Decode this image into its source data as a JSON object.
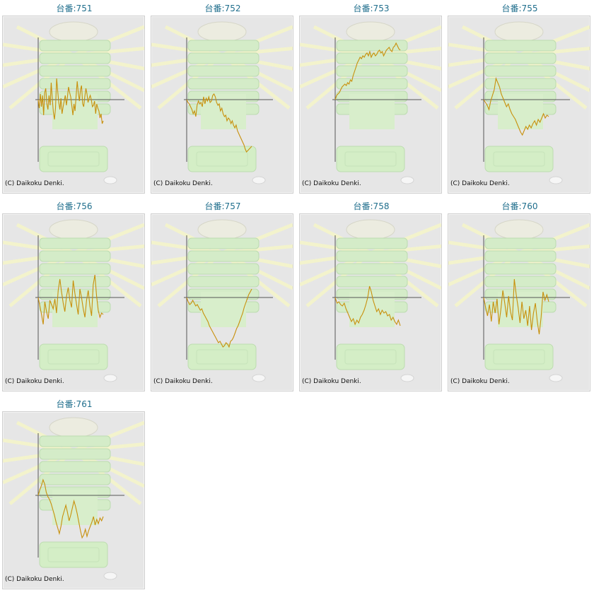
{
  "chart_data": [
    {
      "type": "line",
      "title": "台番:751",
      "copyright": "(C) Daikoku Denki.",
      "values": [
        0,
        -12,
        8,
        -10,
        6,
        -22,
        10,
        16,
        -6,
        -14,
        6,
        -8,
        24,
        2,
        -18,
        -28,
        -12,
        30,
        12,
        -4,
        -14,
        2,
        -20,
        -10,
        -2,
        6,
        -8,
        4,
        18,
        10,
        4,
        -8,
        -22,
        -6,
        -16,
        6,
        26,
        10,
        -2,
        14,
        20,
        -6,
        -10,
        4,
        16,
        8,
        -4,
        2,
        6,
        0,
        -10,
        -8,
        -2,
        -20,
        -6,
        -12,
        -16,
        -26,
        -20,
        -34,
        -30
      ]
    },
    {
      "type": "line",
      "title": "台番:752",
      "copyright": "(C) Daikoku Denki.",
      "values": [
        0,
        -4,
        -6,
        -10,
        -14,
        -20,
        -16,
        -24,
        -8,
        -2,
        -6,
        -4,
        -10,
        4,
        -6,
        2,
        -2,
        4,
        -4,
        -2,
        6,
        8,
        4,
        -4,
        -8,
        -6,
        -16,
        -12,
        -20,
        -24,
        -22,
        -30,
        -26,
        -28,
        -34,
        -30,
        -36,
        -40,
        -36,
        -44,
        -48,
        -52,
        -56,
        -60,
        -64,
        -70,
        -74,
        -72,
        -70,
        -68,
        -66
      ]
    },
    {
      "type": "line",
      "title": "台番:753",
      "copyright": "(C) Daikoku Denki.",
      "values": [
        0,
        6,
        8,
        10,
        14,
        18,
        20,
        22,
        20,
        24,
        22,
        28,
        26,
        34,
        40,
        46,
        52,
        56,
        60,
        58,
        62,
        60,
        64,
        66,
        62,
        68,
        60,
        64,
        66,
        62,
        64,
        68,
        70,
        66,
        68,
        62,
        66,
        70,
        72,
        74,
        70,
        68,
        74,
        76,
        80,
        76,
        72,
        70
      ]
    },
    {
      "type": "line",
      "title": "台番:755",
      "copyright": "(C) Daikoku Denki.",
      "values": [
        0,
        -4,
        -8,
        -14,
        -2,
        6,
        14,
        30,
        24,
        18,
        8,
        2,
        -4,
        -10,
        -6,
        -14,
        -20,
        -24,
        -28,
        -34,
        -40,
        -46,
        -50,
        -44,
        -38,
        -42,
        -36,
        -40,
        -34,
        -30,
        -36,
        -28,
        -32,
        -26,
        -20,
        -26,
        -22,
        -24
      ]
    },
    {
      "type": "line",
      "title": "台番:756",
      "copyright": "(C) Daikoku Denki.",
      "values": [
        0,
        -12,
        -24,
        -38,
        -6,
        -20,
        -30,
        -4,
        -10,
        -16,
        -2,
        -22,
        10,
        26,
        8,
        -8,
        -20,
        2,
        14,
        -4,
        -14,
        24,
        6,
        -10,
        -24,
        12,
        0,
        -16,
        -28,
        -4,
        10,
        -12,
        -26,
        18,
        32,
        2,
        -18,
        -28,
        -22,
        -24
      ]
    },
    {
      "type": "line",
      "title": "台番:757",
      "copyright": "(C) Daikoku Denki.",
      "values": [
        0,
        -6,
        -10,
        -8,
        -4,
        -8,
        -12,
        -10,
        -14,
        -18,
        -16,
        -22,
        -26,
        -30,
        -34,
        -40,
        -44,
        -48,
        -52,
        -56,
        -60,
        -64,
        -62,
        -66,
        -70,
        -68,
        -64,
        -66,
        -70,
        -62,
        -60,
        -56,
        -50,
        -44,
        -40,
        -34,
        -28,
        -22,
        -14,
        -8,
        -2,
        4,
        8,
        12
      ]
    },
    {
      "type": "line",
      "title": "台番:758",
      "copyright": "(C) Daikoku Denki.",
      "values": [
        0,
        -8,
        -6,
        -10,
        -12,
        -8,
        -16,
        -22,
        -28,
        -34,
        -30,
        -38,
        -32,
        -36,
        -28,
        -24,
        -18,
        -10,
        0,
        16,
        8,
        -4,
        -12,
        -20,
        -16,
        -24,
        -18,
        -22,
        -20,
        -26,
        -24,
        -32,
        -28,
        -34,
        -38,
        -32,
        -40
      ]
    },
    {
      "type": "line",
      "title": "台番:760",
      "copyright": "(C) Daikoku Denki.",
      "values": [
        0,
        -14,
        -26,
        -10,
        -34,
        -6,
        -22,
        -2,
        -38,
        -16,
        10,
        -8,
        -28,
        2,
        -20,
        -32,
        26,
        4,
        -14,
        -36,
        -6,
        -30,
        -18,
        -40,
        -12,
        -46,
        -22,
        -8,
        -34,
        -52,
        -28,
        8,
        -4,
        4,
        -6
      ]
    },
    {
      "type": "line",
      "title": "台番:761",
      "copyright": "(C) Daikoku Denki.",
      "values": [
        0,
        8,
        14,
        22,
        16,
        4,
        -2,
        -6,
        -12,
        -20,
        -28,
        -38,
        -46,
        -54,
        -44,
        -30,
        -22,
        -14,
        -24,
        -36,
        -28,
        -18,
        -8,
        -16,
        -26,
        -38,
        -50,
        -60,
        -56,
        -48,
        -58,
        -50,
        -44,
        -38,
        -30,
        -42,
        -34,
        -40,
        -32,
        -36,
        -30
      ]
    }
  ]
}
